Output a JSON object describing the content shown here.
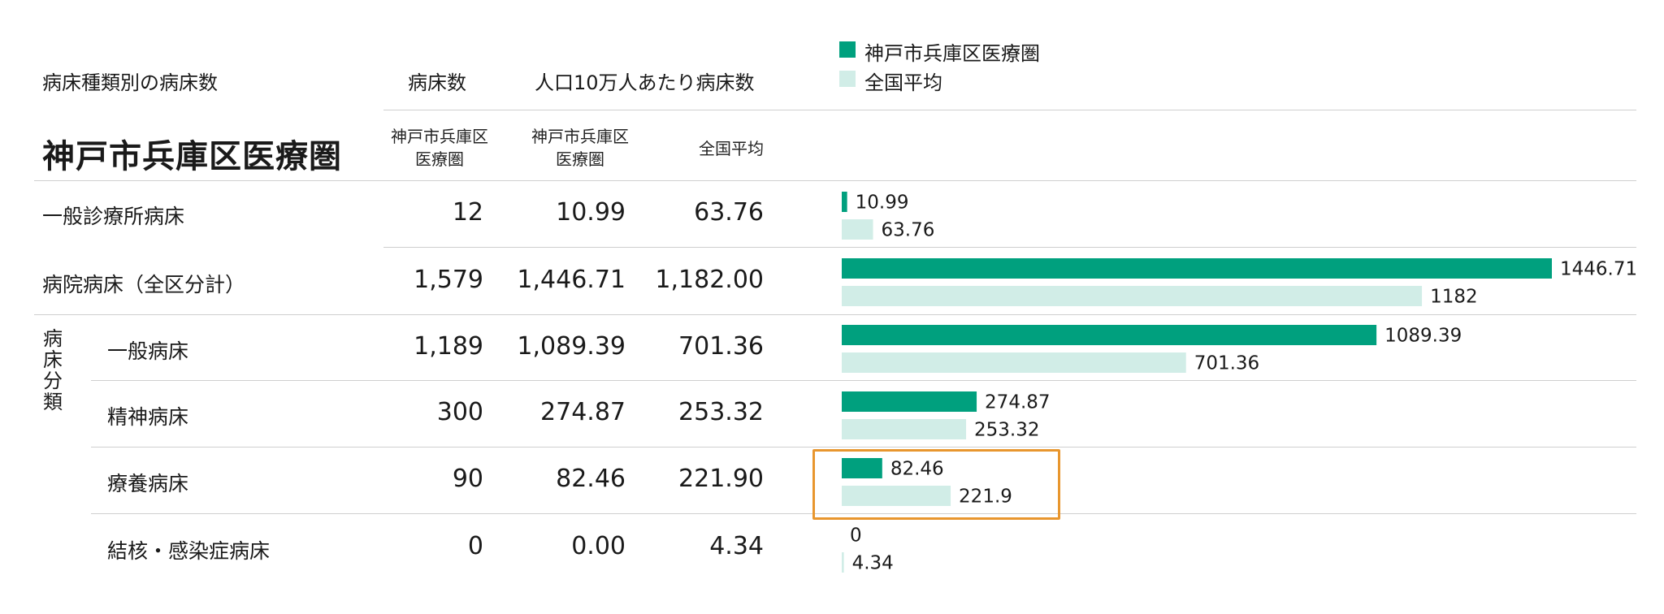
{
  "header": {
    "section_title": "病床種類別の病床数",
    "col_beds": "病床数",
    "col_per100k": "人口10万人あたり病床数",
    "region_title": "神戸市兵庫区医療圏",
    "sub_region_1": "神戸市兵庫区\n医療圏",
    "sub_region_2": "神戸市兵庫区\n医療圏",
    "sub_national": "全国平均"
  },
  "legend": [
    {
      "label": "神戸市兵庫区医療圏",
      "color": "#00a07e"
    },
    {
      "label": "全国平均",
      "color": "#d1ede7"
    }
  ],
  "group_label": "病\n床\n分\n類",
  "rows": [
    {
      "label": "一般診療所病床",
      "beds": "12",
      "region": "10.99",
      "national": "63.76"
    },
    {
      "label": "病院病床（全区分計）",
      "beds": "1,579",
      "region": "1,446.71",
      "national": "1,182.00"
    },
    {
      "label": "一般病床",
      "beds": "1,189",
      "region": "1,089.39",
      "national": "701.36"
    },
    {
      "label": "精神病床",
      "beds": "300",
      "region": "274.87",
      "national": "253.32"
    },
    {
      "label": "療養病床",
      "beds": "90",
      "region": "82.46",
      "national": "221.90"
    },
    {
      "label": "結核・感染症病床",
      "beds": "0",
      "region": "0.00",
      "national": "4.34"
    }
  ],
  "chart_data": {
    "type": "bar",
    "orientation": "horizontal",
    "categories": [
      "一般診療所病床",
      "病院病床（全区分計）",
      "一般病床",
      "精神病床",
      "療養病床",
      "結核・感染症病床"
    ],
    "series": [
      {
        "name": "神戸市兵庫区医療圏",
        "values": [
          10.99,
          1446.71,
          1089.39,
          274.87,
          82.46,
          0
        ],
        "labels": [
          "10.99",
          "1446.71",
          "1089.39",
          "274.87",
          "82.46",
          "0"
        ],
        "color": "#00a07e"
      },
      {
        "name": "全国平均",
        "values": [
          63.76,
          1182,
          701.36,
          253.32,
          221.9,
          4.34
        ],
        "labels": [
          "63.76",
          "1182",
          "701.36",
          "253.32",
          "221.9",
          "4.34"
        ],
        "color": "#d1ede7"
      }
    ],
    "xlim": [
      0,
      1446.71
    ],
    "legend_position": "top",
    "highlighted_category": "療養病床"
  }
}
